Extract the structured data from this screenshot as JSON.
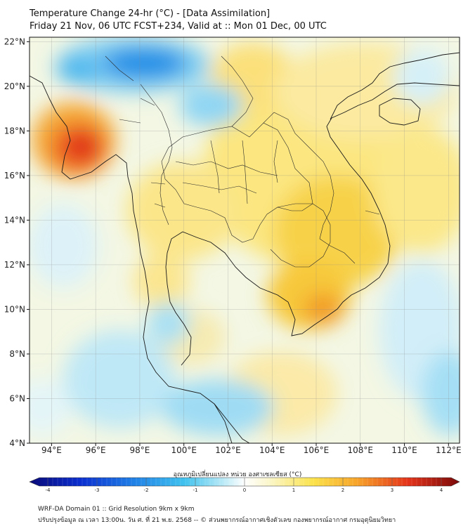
{
  "header": {
    "title": "Temperature Change 24-hr (°C) - [Data Assimilation]",
    "subtitle": "Friday 21 Nov, 06 UTC FCST+234, Valid at :: Mon 01 Dec, 00 UTC"
  },
  "map": {
    "lat_labels": [
      "22°N",
      "20°N",
      "18°N",
      "16°N",
      "14°N",
      "12°N",
      "10°N",
      "8°N",
      "6°N",
      "4°N"
    ],
    "lat_values": [
      22,
      20,
      18,
      16,
      14,
      12,
      10,
      8,
      6,
      4
    ],
    "lon_labels": [
      "94°E",
      "96°E",
      "98°E",
      "100°E",
      "102°E",
      "104°E",
      "106°E",
      "108°E",
      "110°E",
      "112°E"
    ],
    "lon_values": [
      94,
      96,
      98,
      100,
      102,
      104,
      106,
      108,
      110,
      112
    ],
    "lon_range": [
      93,
      112.5
    ],
    "lat_range": [
      4,
      22.2
    ]
  },
  "colorbar": {
    "label": "อุณหภูมิเปลี่ยนแปลง หน่วย องศาเซลเซียส (°C)",
    "ticks": [
      "-4",
      "-3",
      "-2",
      "-1",
      "0",
      "1",
      "2",
      "3",
      "4"
    ],
    "tick_values": [
      -4,
      -3,
      -2,
      -1,
      0,
      1,
      2,
      3,
      4
    ],
    "range": [
      -4,
      4
    ]
  },
  "footer": {
    "line1": "WRF-DA Domain 01 :: Grid Resolution 9km x 9km",
    "line2": "ปรับปรุงข้อมูล ณ เวลา 13:00น. วัน ศ. ที่ 21 พ.ย. 2568 -- © ส่วนพยากรณ์อากาศเชิงตัวเลข กองพยากรณ์อากาศ กรมอุตุนิยมวิทยา"
  }
}
